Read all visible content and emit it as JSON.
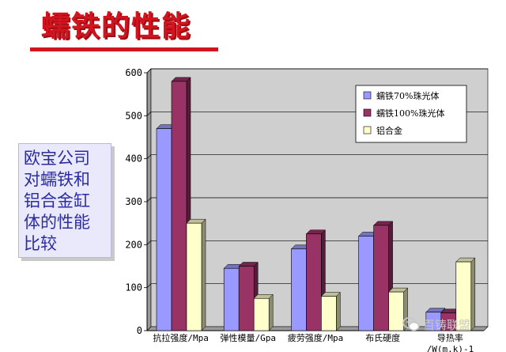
{
  "slide": {
    "title": "蠕铁的性能",
    "side_text": [
      "欧宝公司",
      "对蠕铁和",
      "铝合金缸",
      "体的性能",
      "比较"
    ],
    "watermark": "百铸联盟",
    "title_color": "#d2141e",
    "side_text_color": "#2c2ca0",
    "side_box_color": "#e9e9fb"
  },
  "chart_data": {
    "type": "bar",
    "title": "",
    "xlabel": "",
    "ylabel": "",
    "ylim": [
      0,
      600
    ],
    "yticks": [
      0,
      100,
      200,
      300,
      400,
      500,
      600
    ],
    "grid": true,
    "legend_position": "top-right",
    "categories": [
      [
        "抗拉强度/Mpa"
      ],
      [
        "弹性模量/Gpa"
      ],
      [
        "疲劳强度/Mpa"
      ],
      [
        "布氏硬度"
      ],
      [
        "导热率",
        "/W(m.k)-1"
      ]
    ],
    "series": [
      {
        "name": "蠕铁70%珠光体",
        "values": [
          470,
          145,
          190,
          220,
          43
        ],
        "color": "#9999ff"
      },
      {
        "name": "蠕铁100%珠光体",
        "values": [
          580,
          150,
          225,
          245,
          41
        ],
        "color": "#993366"
      },
      {
        "name": "铝合金",
        "values": [
          250,
          75,
          80,
          90,
          160
        ],
        "color": "#ffffcc"
      }
    ]
  }
}
